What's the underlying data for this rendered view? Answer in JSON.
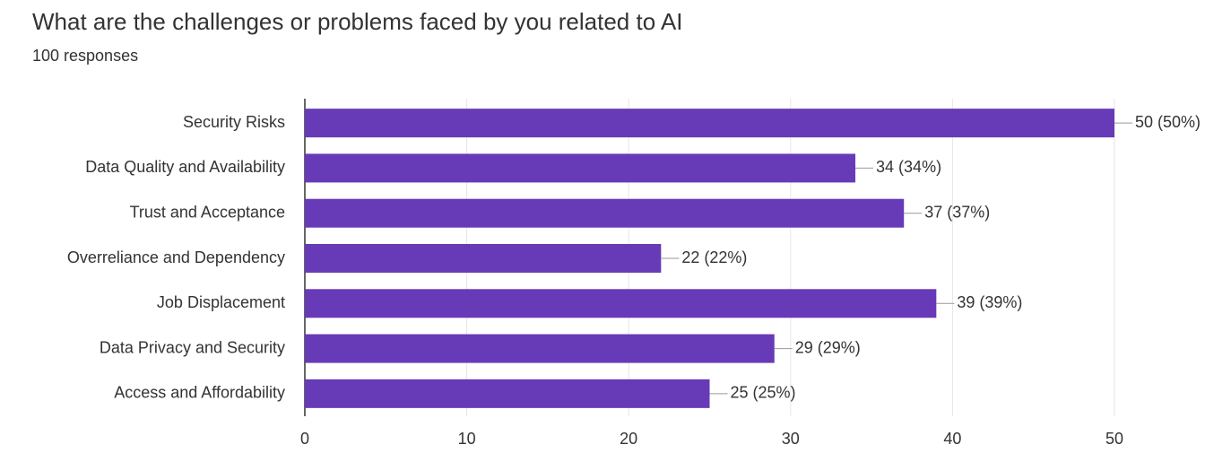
{
  "chart_data": {
    "type": "hbar",
    "title": "What are the challenges or problems faced by you related to AI",
    "subtitle": "100 responses",
    "categories": [
      "Security Risks",
      "Data Quality and Availability",
      "Trust and Acceptance",
      "Overreliance and Dependency",
      "Job Displacement",
      "Data Privacy and Security",
      "Access and Affordability"
    ],
    "values": [
      50,
      34,
      37,
      22,
      39,
      29,
      25
    ],
    "value_labels": [
      "50 (50%)",
      "34 (34%)",
      "37 (37%)",
      "22 (22%)",
      "39 (39%)",
      "29 (29%)",
      "25 (25%)"
    ],
    "color": "#673ab7",
    "xlim": [
      0,
      50
    ],
    "xticks": [
      0,
      10,
      20,
      30,
      40,
      50
    ],
    "grid": true
  }
}
